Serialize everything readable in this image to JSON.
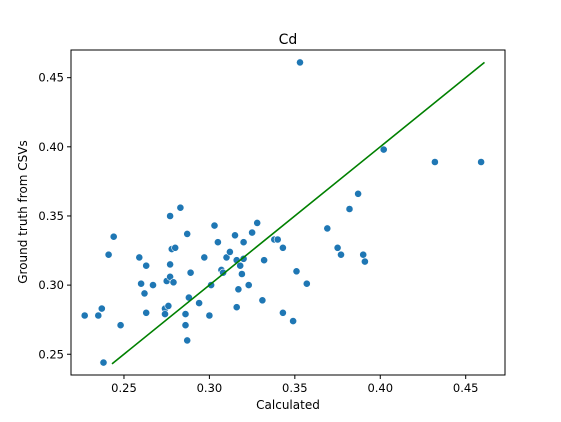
{
  "chart_data": {
    "type": "scatter",
    "title": "Cd",
    "xlabel": "Calculated",
    "ylabel": "Ground truth from CSVs",
    "xlim": [
      0.219,
      0.473
    ],
    "ylim": [
      0.235,
      0.47
    ],
    "xticks": [
      0.25,
      0.3,
      0.35,
      0.4,
      0.45
    ],
    "xtick_labels": [
      "0.25",
      "0.30",
      "0.35",
      "0.40",
      "0.45"
    ],
    "yticks": [
      0.25,
      0.3,
      0.35,
      0.4,
      0.45
    ],
    "ytick_labels": [
      "0.25",
      "0.30",
      "0.35",
      "0.40",
      "0.45"
    ],
    "grid": false,
    "colors": {
      "points": "#1f77b4",
      "line": "#008000"
    },
    "points": {
      "x": [
        0.227,
        0.235,
        0.237,
        0.238,
        0.241,
        0.244,
        0.248,
        0.259,
        0.26,
        0.262,
        0.263,
        0.263,
        0.267,
        0.274,
        0.274,
        0.275,
        0.276,
        0.277,
        0.277,
        0.277,
        0.278,
        0.279,
        0.28,
        0.283,
        0.286,
        0.286,
        0.287,
        0.287,
        0.288,
        0.289,
        0.294,
        0.297,
        0.3,
        0.301,
        0.303,
        0.305,
        0.307,
        0.308,
        0.31,
        0.312,
        0.315,
        0.316,
        0.316,
        0.317,
        0.318,
        0.319,
        0.32,
        0.32,
        0.323,
        0.325,
        0.328,
        0.331,
        0.332,
        0.338,
        0.34,
        0.343,
        0.343,
        0.349,
        0.351,
        0.353,
        0.357,
        0.369,
        0.375,
        0.377,
        0.382,
        0.387,
        0.39,
        0.391,
        0.402,
        0.432,
        0.459
      ],
      "y": [
        0.278,
        0.278,
        0.283,
        0.244,
        0.322,
        0.335,
        0.271,
        0.32,
        0.301,
        0.294,
        0.28,
        0.314,
        0.3,
        0.283,
        0.279,
        0.303,
        0.285,
        0.306,
        0.315,
        0.35,
        0.326,
        0.302,
        0.327,
        0.356,
        0.279,
        0.271,
        0.26,
        0.337,
        0.291,
        0.309,
        0.287,
        0.32,
        0.278,
        0.3,
        0.343,
        0.331,
        0.311,
        0.309,
        0.32,
        0.324,
        0.336,
        0.318,
        0.284,
        0.297,
        0.314,
        0.308,
        0.319,
        0.331,
        0.3,
        0.338,
        0.345,
        0.289,
        0.318,
        0.333,
        0.333,
        0.28,
        0.327,
        0.274,
        0.31,
        0.461,
        0.301,
        0.341,
        0.327,
        0.322,
        0.355,
        0.366,
        0.322,
        0.317,
        0.398,
        0.389,
        0.389
      ]
    },
    "fit_line": {
      "x": [
        0.243,
        0.461
      ],
      "y": [
        0.243,
        0.461
      ]
    }
  }
}
